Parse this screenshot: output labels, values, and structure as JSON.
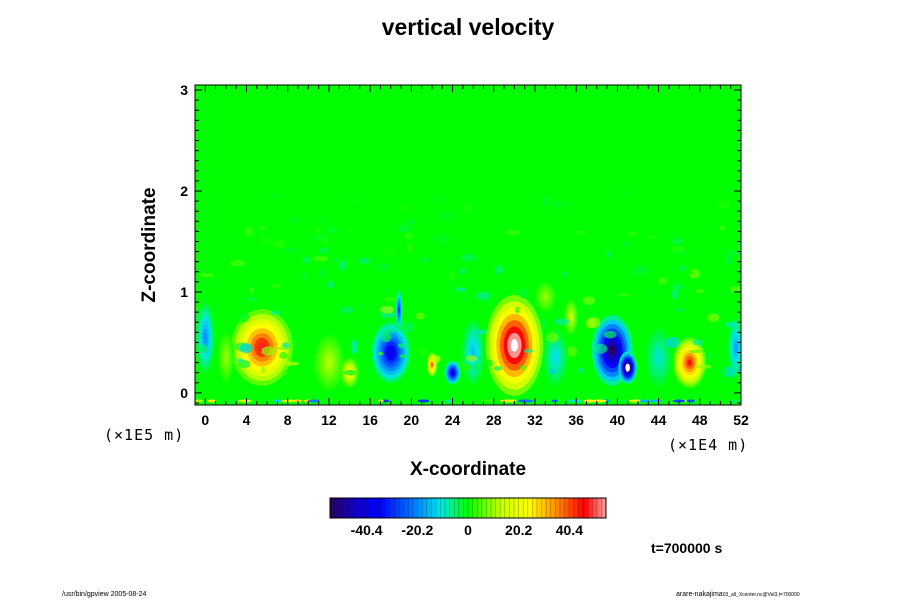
{
  "title": "vertical velocity",
  "xlabel": "X-coordinate",
  "ylabel": "Z-coordinate",
  "x_scale_label": "(×1E4 m)",
  "y_scale_label": "(×1E5 m)",
  "time_label": "t=700000 s",
  "footer_left": "/usr/bin/gpview 2005-08-24",
  "footer_right": "arare-nakajima",
  "footer_right_small": "03_all_Xcenter.nc@Vel3,t=700000",
  "colors": {
    "background_field": "#00ff00",
    "positive_extreme": "#ff0000",
    "negative_extreme": "#0000ff",
    "undefined_region": "#ffffff"
  },
  "chart_data": {
    "type": "heatmap",
    "title": "vertical velocity",
    "xlabel": "X-coordinate",
    "ylabel": "Z-coordinate",
    "xlim": [
      -1,
      52
    ],
    "ylim": [
      -0.12,
      3.05
    ],
    "x_ticks": [
      "0",
      "4",
      "8",
      "12",
      "16",
      "20",
      "24",
      "28",
      "32",
      "36",
      "40",
      "44",
      "48",
      "52"
    ],
    "y_ticks": [
      "0",
      "1",
      "2",
      "3"
    ],
    "colorbar": {
      "ticks": [
        "-40.4",
        "-20.2",
        "0",
        "20.2",
        "40.4"
      ],
      "min": -55,
      "max": 55
    },
    "features": [
      {
        "x": 5.5,
        "z": 0.45,
        "rx": 3.0,
        "rz": 0.38,
        "value": 48
      },
      {
        "x": 30.0,
        "z": 0.47,
        "rx": 2.8,
        "rz": 0.5,
        "value": 62
      },
      {
        "x": 47.0,
        "z": 0.3,
        "rx": 1.6,
        "rz": 0.25,
        "value": 45
      },
      {
        "x": 39.5,
        "z": 0.42,
        "rx": 2.0,
        "rz": 0.35,
        "value": -55
      },
      {
        "x": 41.0,
        "z": 0.25,
        "rx": 0.9,
        "rz": 0.16,
        "value": -65
      },
      {
        "x": 18.0,
        "z": 0.4,
        "rx": 1.9,
        "rz": 0.3,
        "value": -40
      },
      {
        "x": 18.8,
        "z": 0.82,
        "rx": 0.35,
        "rz": 0.2,
        "value": -30
      },
      {
        "x": 24.0,
        "z": 0.2,
        "rx": 0.8,
        "rz": 0.12,
        "value": -42
      },
      {
        "x": 22.0,
        "z": 0.28,
        "rx": 0.5,
        "rz": 0.12,
        "value": 40
      },
      {
        "x": 12.0,
        "z": 0.3,
        "rx": 1.5,
        "rz": 0.28,
        "value": 12
      },
      {
        "x": 14.0,
        "z": 0.2,
        "rx": 0.9,
        "rz": 0.15,
        "value": 22
      },
      {
        "x": 26.0,
        "z": 0.4,
        "rx": 1.1,
        "rz": 0.32,
        "value": -15
      },
      {
        "x": 34.0,
        "z": 0.35,
        "rx": 1.2,
        "rz": 0.28,
        "value": -12
      },
      {
        "x": 44.0,
        "z": 0.35,
        "rx": 1.3,
        "rz": 0.3,
        "value": -10
      },
      {
        "x": 0.0,
        "z": 0.55,
        "rx": 0.9,
        "rz": 0.35,
        "value": -20
      },
      {
        "x": 51.5,
        "z": 0.45,
        "rx": 0.8,
        "rz": 0.3,
        "value": -18
      },
      {
        "x": 2.0,
        "z": 0.35,
        "rx": 0.8,
        "rz": 0.25,
        "value": 10
      },
      {
        "x": 35.5,
        "z": 0.75,
        "rx": 0.7,
        "rz": 0.18,
        "value": 14
      },
      {
        "x": 33.0,
        "z": 0.95,
        "rx": 1.0,
        "rz": 0.15,
        "value": 10
      }
    ]
  }
}
